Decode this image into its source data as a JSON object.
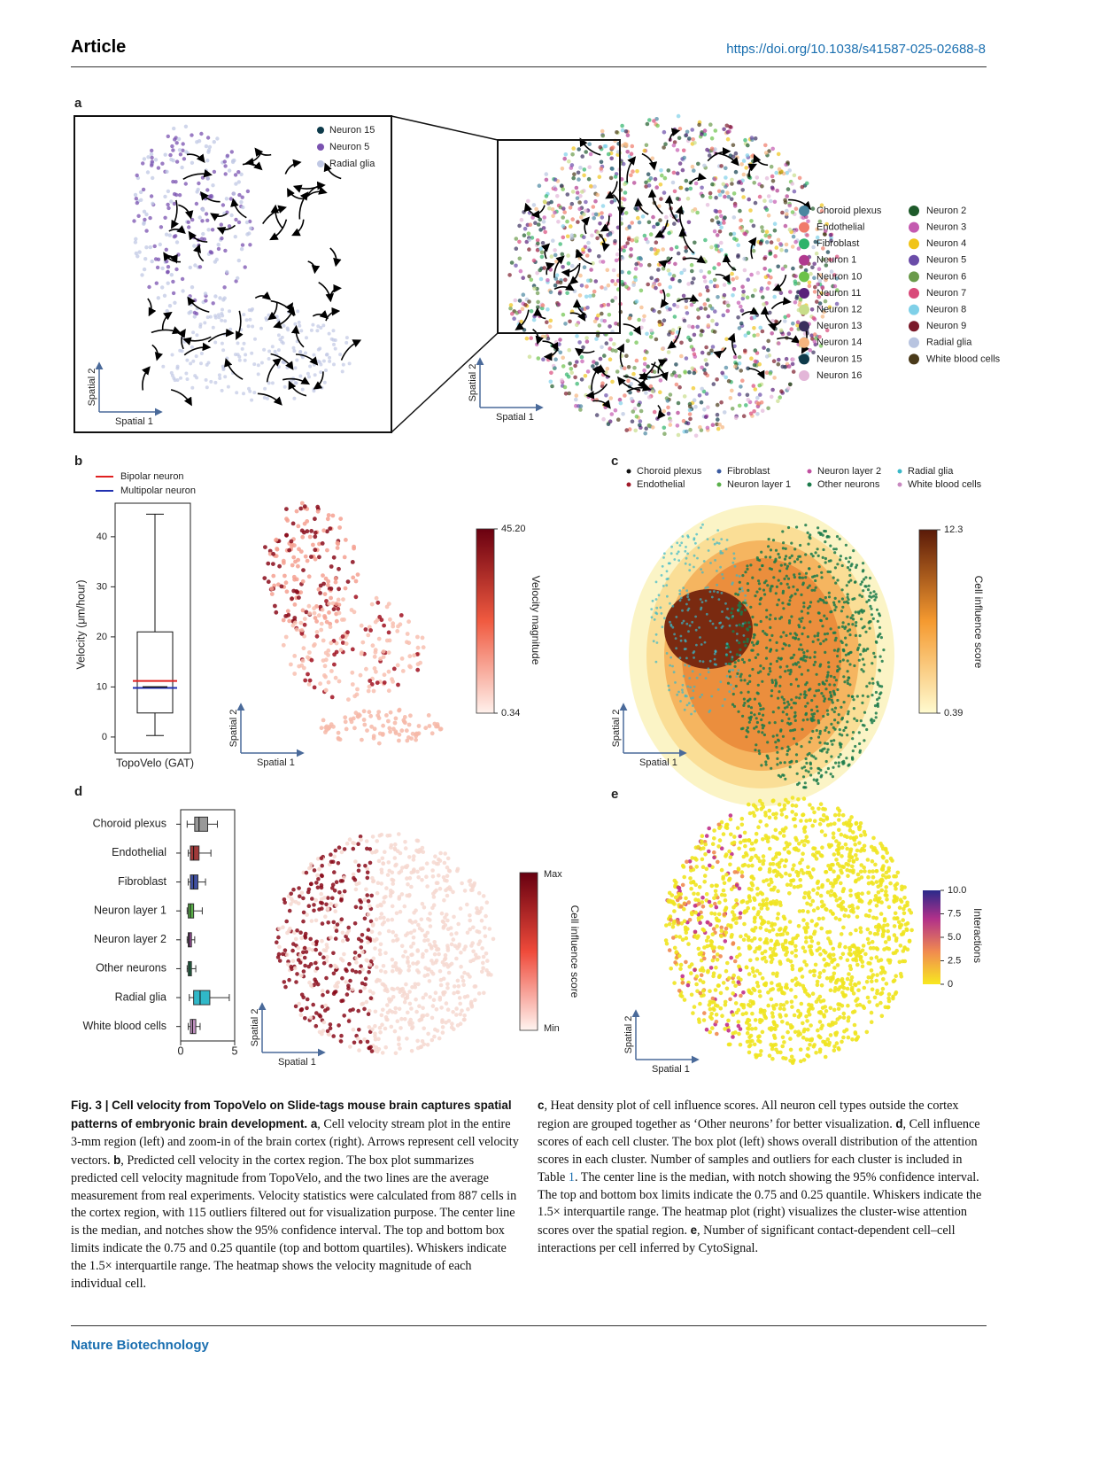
{
  "header": {
    "section": "Article",
    "doi": "https://doi.org/10.1038/s41587-025-02688-8"
  },
  "panels": {
    "a": "a",
    "b": "b",
    "c": "c",
    "d": "d",
    "e": "e"
  },
  "spatial_axes": {
    "x": "Spatial 1",
    "y": "Spatial 2"
  },
  "panel_a": {
    "inset_legend": [
      {
        "name": "Neuron 15",
        "color": "#0d3a4a"
      },
      {
        "name": "Neuron 5",
        "color": "#7a52b0"
      },
      {
        "name": "Radial glia",
        "color": "#c0c8e4"
      }
    ],
    "legend": [
      {
        "name": "Choroid plexus",
        "color": "#4a86a0"
      },
      {
        "name": "Endothelial",
        "color": "#f07a6a"
      },
      {
        "name": "Fibroblast",
        "color": "#2fb36a"
      },
      {
        "name": "Neuron 1",
        "color": "#b0398e"
      },
      {
        "name": "Neuron 10",
        "color": "#6cc24a"
      },
      {
        "name": "Neuron 11",
        "color": "#5a1f7a"
      },
      {
        "name": "Neuron 12",
        "color": "#c8dd8a"
      },
      {
        "name": "Neuron 13",
        "color": "#3a2f5e"
      },
      {
        "name": "Neuron 14",
        "color": "#f5b57f"
      },
      {
        "name": "Neuron 15",
        "color": "#0d3a4a"
      },
      {
        "name": "Neuron 16",
        "color": "#e3b6d8"
      },
      {
        "name": "Neuron 2",
        "color": "#1e5a2a"
      },
      {
        "name": "Neuron 3",
        "color": "#c45ab0"
      },
      {
        "name": "Neuron 4",
        "color": "#f0c419"
      },
      {
        "name": "Neuron 5",
        "color": "#6a4ca8"
      },
      {
        "name": "Neuron 6",
        "color": "#6a9a4a"
      },
      {
        "name": "Neuron 7",
        "color": "#d94a7a"
      },
      {
        "name": "Neuron 8",
        "color": "#7fd0e8"
      },
      {
        "name": "Neuron 9",
        "color": "#7a1a2a"
      },
      {
        "name": "Radial glia",
        "color": "#b8c4e0"
      },
      {
        "name": "White blood cells",
        "color": "#4a3a1a"
      }
    ]
  },
  "panel_b_map": {
    "colorbar_label": "Velocity magnitude",
    "clim": [
      0.34,
      45.2
    ],
    "cticks": [
      {
        "value": 45.2,
        "label": "45.20"
      },
      0.34
    ]
  },
  "panel_c": {
    "legend": [
      {
        "name": "Choroid plexus",
        "color": "#111111"
      },
      {
        "name": "Endothelial",
        "color": "#a01a2a"
      },
      {
        "name": "Fibroblast",
        "color": "#3a5aa0"
      },
      {
        "name": "Neuron layer 1",
        "color": "#5ab04a"
      },
      {
        "name": "Neuron layer 2",
        "color": "#c050a0"
      },
      {
        "name": "Other neurons",
        "color": "#1a7a4a"
      },
      {
        "name": "Radial glia",
        "color": "#3ab8c8"
      },
      {
        "name": "White blood cells",
        "color": "#c888c0"
      }
    ],
    "colorbar_label": "Cell influence score",
    "clim": [
      0.39,
      12.3
    ],
    "cticks": [
      12.3,
      0.39
    ]
  },
  "panel_d_map": {
    "colorbar_label": "Cell influence score",
    "cticks": [
      "Max",
      "Min"
    ]
  },
  "panel_e": {
    "colorbar_label": "Interactions",
    "clim": [
      0,
      10
    ],
    "cticks": [
      {
        "value": 10,
        "label": "10.0"
      },
      7.5,
      {
        "value": 5,
        "label": "5.0"
      },
      2.5,
      0
    ]
  },
  "chart_data": [
    {
      "type": "box",
      "ylabel": "Velocity (μm/hour)",
      "categories": [
        "TopoVelo (GAT)"
      ],
      "boxes": [
        {
          "whislo": 0.3,
          "q1": 4.8,
          "med": 10,
          "q3": 21,
          "whishi": 44.5
        }
      ],
      "lines": [
        {
          "name": "Bipolar neuron",
          "color": "#e02020",
          "value": 11.2
        },
        {
          "name": "Multipolar neuron",
          "color": "#2030b0",
          "value": 9.8
        }
      ],
      "ylim": [
        -3.2,
        46.7
      ],
      "yticks": [
        0,
        10,
        20,
        30,
        40
      ]
    },
    {
      "type": "hbox",
      "categories": [
        "Choroid plexus",
        "Endothelial",
        "Fibroblast",
        "Neuron layer 1",
        "Neuron layer 2",
        "Other neurons",
        "Radial glia",
        "White blood cells"
      ],
      "colors": [
        "#999999",
        "#a03a3a",
        "#4050a0",
        "#5ab04a",
        "#a050a0",
        "#2a8a5a",
        "#30b8c8",
        "#c090c0"
      ],
      "boxes": [
        {
          "whislo": 0.6,
          "q1": 1.3,
          "med": 1.7,
          "q3": 2.5,
          "whishi": 3.4
        },
        {
          "whislo": 0.7,
          "q1": 0.9,
          "med": 1.2,
          "q3": 1.7,
          "whishi": 2.8
        },
        {
          "whislo": 0.7,
          "q1": 0.9,
          "med": 1.2,
          "q3": 1.6,
          "whishi": 2.3
        },
        {
          "whislo": 0.6,
          "q1": 0.7,
          "med": 0.9,
          "q3": 1.2,
          "whishi": 2.0
        },
        {
          "whislo": 0.6,
          "q1": 0.7,
          "med": 0.8,
          "q3": 1.0,
          "whishi": 1.3
        },
        {
          "whislo": 0.6,
          "q1": 0.7,
          "med": 0.85,
          "q3": 1.0,
          "whishi": 1.4
        },
        {
          "whislo": 0.8,
          "q1": 1.2,
          "med": 1.8,
          "q3": 2.7,
          "whishi": 4.5
        },
        {
          "whislo": 0.7,
          "q1": 0.9,
          "med": 1.1,
          "q3": 1.4,
          "whishi": 1.8
        }
      ],
      "xlim": [
        0,
        5
      ],
      "xticks": [
        0,
        5
      ]
    }
  ],
  "caption": {
    "left": [
      {
        "bold": "Fig. 3 | Cell velocity from TopoVelo on Slide-tags mouse brain captures spatial patterns of embryonic brain development. a"
      },
      {
        "text": ", Cell velocity stream plot in the entire 3-mm region (left) and zoom-in of the brain cortex (right). Arrows represent cell velocity vectors. "
      },
      {
        "bold": "b"
      },
      {
        "text": ", Predicted cell velocity in the cortex region. The box plot summarizes predicted cell velocity magnitude from TopoVelo, and the two lines are the average measurement from real experiments. Velocity statistics were calculated from 887 cells in the cortex region, with 115 outliers filtered out for visualization purpose. The center line is the median, and notches show the 95% confidence interval. The top and bottom box limits indicate the 0.75 and 0.25 quantile (top and bottom quartiles). Whiskers indicate the 1.5× interquartile range. The heatmap shows the velocity magnitude of each individual cell."
      }
    ],
    "right": [
      {
        "bold": "c"
      },
      {
        "text": ", Heat density plot of cell influence scores. All neuron cell types outside the cortex region are grouped together as ‘Other neurons’ for better visualization. "
      },
      {
        "bold": "d"
      },
      {
        "text": ", Cell influence scores of each cell cluster. The box plot (left) shows overall distribution of the attention scores in each cluster. Number of samples and outliers for each cluster is included in Table "
      },
      {
        "link": "1"
      },
      {
        "text": ". The center line is the median, with notch showing the 95% confidence interval. The top and bottom box limits indicate the 0.75 and 0.25 quantile. Whiskers indicate the 1.5× interquartile range. The heatmap plot (right) visualizes the cluster-wise attention scores over the spatial region. "
      },
      {
        "bold": "e"
      },
      {
        "text": ", Number of significant contact-dependent cell–cell interactions per cell inferred by CytoSignal."
      }
    ]
  },
  "footer": {
    "journal": "Nature Biotechnology"
  }
}
